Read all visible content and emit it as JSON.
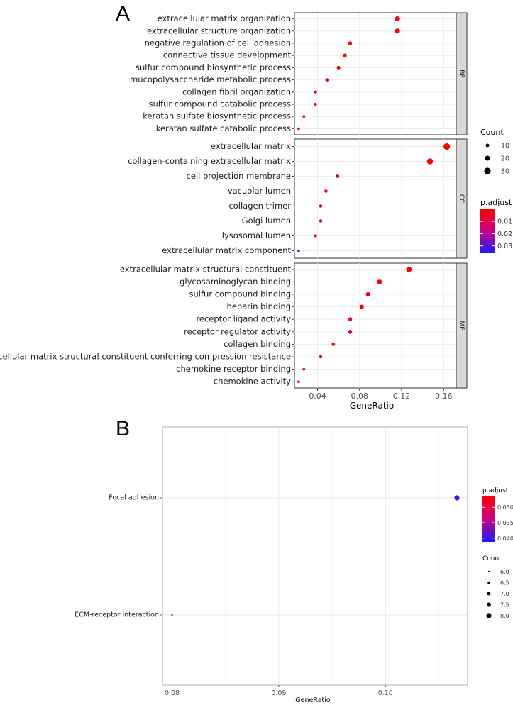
{
  "chart_data": [
    {
      "panel_label": "A",
      "type": "scatter",
      "subtype": "faceted dot plot",
      "xlabel": "GeneRatio",
      "xlim": [
        0.018,
        0.172
      ],
      "xticks": [
        0.04,
        0.08,
        0.12,
        0.16
      ],
      "xtick_labels": [
        "0.04",
        "0.08",
        "0.12",
        "0.16"
      ],
      "facets": [
        {
          "name": "BP",
          "terms": [
            {
              "term": "extracellular matrix organization",
              "gene_ratio": 0.116,
              "count": 21,
              "p_adjust": 0.0002
            },
            {
              "term": "extracellular structure organization",
              "gene_ratio": 0.116,
              "count": 21,
              "p_adjust": 0.0002
            },
            {
              "term": "negative regulation of cell adhesion",
              "gene_ratio": 0.071,
              "count": 13,
              "p_adjust": 0.0005
            },
            {
              "term": "connective tissue development",
              "gene_ratio": 0.066,
              "count": 12,
              "p_adjust": 0.0008
            },
            {
              "term": "sulfur compound biosynthetic process",
              "gene_ratio": 0.06,
              "count": 11,
              "p_adjust": 0.0008
            },
            {
              "term": "mucopolysaccharide metabolic process",
              "gene_ratio": 0.049,
              "count": 9,
              "p_adjust": 0.001
            },
            {
              "term": "collagen fibril organization",
              "gene_ratio": 0.038,
              "count": 7,
              "p_adjust": 0.001
            },
            {
              "term": "sulfur compound catabolic process",
              "gene_ratio": 0.038,
              "count": 7,
              "p_adjust": 0.001
            },
            {
              "term": "keratan sulfate biosynthetic process",
              "gene_ratio": 0.027,
              "count": 5,
              "p_adjust": 0.002
            },
            {
              "term": "keratan sulfate catabolic process",
              "gene_ratio": 0.022,
              "count": 4,
              "p_adjust": 0.002
            }
          ]
        },
        {
          "name": "CC",
          "terms": [
            {
              "term": "extracellular matrix",
              "gene_ratio": 0.163,
              "count": 30,
              "p_adjust": 0.0001
            },
            {
              "term": "collagen-containing extracellular matrix",
              "gene_ratio": 0.147,
              "count": 27,
              "p_adjust": 0.0001
            },
            {
              "term": "cell projection membrane",
              "gene_ratio": 0.059,
              "count": 11,
              "p_adjust": 0.019
            },
            {
              "term": "vacuolar lumen",
              "gene_ratio": 0.048,
              "count": 9,
              "p_adjust": 0.003
            },
            {
              "term": "collagen trimer",
              "gene_ratio": 0.043,
              "count": 8,
              "p_adjust": 0.002
            },
            {
              "term": "Golgi lumen",
              "gene_ratio": 0.043,
              "count": 8,
              "p_adjust": 0.002
            },
            {
              "term": "lysosomal lumen",
              "gene_ratio": 0.038,
              "count": 7,
              "p_adjust": 0.004
            },
            {
              "term": "extracellular matrix component",
              "gene_ratio": 0.022,
              "count": 4,
              "p_adjust": 0.034
            }
          ]
        },
        {
          "name": "MF",
          "terms": [
            {
              "term": "extracellular matrix structural constituent",
              "gene_ratio": 0.127,
              "count": 23,
              "p_adjust": 0.0001
            },
            {
              "term": "glycosaminoglycan binding",
              "gene_ratio": 0.099,
              "count": 18,
              "p_adjust": 0.0002
            },
            {
              "term": "sulfur compound binding",
              "gene_ratio": 0.088,
              "count": 16,
              "p_adjust": 0.0005
            },
            {
              "term": "heparin binding",
              "gene_ratio": 0.082,
              "count": 15,
              "p_adjust": 0.0008
            },
            {
              "term": "receptor ligand activity",
              "gene_ratio": 0.071,
              "count": 13,
              "p_adjust": 0.008
            },
            {
              "term": "receptor regulator activity",
              "gene_ratio": 0.071,
              "count": 13,
              "p_adjust": 0.009
            },
            {
              "term": "collagen binding",
              "gene_ratio": 0.055,
              "count": 10,
              "p_adjust": 0.001
            },
            {
              "term": "extracellular matrix structural constituent conferring compression resistance",
              "gene_ratio": 0.043,
              "count": 8,
              "p_adjust": 0.001
            },
            {
              "term": "chemokine receptor binding",
              "gene_ratio": 0.027,
              "count": 5,
              "p_adjust": 0.006
            },
            {
              "term": "chemokine activity",
              "gene_ratio": 0.022,
              "count": 4,
              "p_adjust": 0.003
            }
          ]
        }
      ],
      "legend_count": {
        "title": "Count",
        "values": [
          10,
          20,
          30
        ],
        "labels": [
          "10",
          "20",
          "30"
        ]
      },
      "legend_color": {
        "title": "p.adjust",
        "range": [
          0.0001,
          0.036
        ],
        "ticks": [
          0.01,
          0.02,
          0.03
        ],
        "tick_labels": [
          "0.01",
          "0.02",
          "0.03"
        ],
        "low_color": "#ff0000",
        "high_color": "#1a1aff"
      }
    },
    {
      "panel_label": "B",
      "type": "scatter",
      "subtype": "dot plot",
      "xlabel": "GeneRatio",
      "xlim": [
        0.0791,
        0.1077
      ],
      "xticks": [
        0.08,
        0.09,
        0.1
      ],
      "xtick_labels": [
        "0.08",
        "0.09",
        "0.10"
      ],
      "terms": [
        {
          "term": "Focal adhesion",
          "gene_ratio": 0.1067,
          "count": 8,
          "p_adjust": 0.0405
        },
        {
          "term": "ECM-receptor interaction",
          "gene_ratio": 0.08,
          "count": 6,
          "p_adjust": 0.0265
        }
      ],
      "legend_color": {
        "title": "p.adjust",
        "range": [
          0.0265,
          0.0412
        ],
        "ticks": [
          0.03,
          0.035,
          0.04
        ],
        "tick_labels": [
          "0.030",
          "0.035",
          "0.040"
        ],
        "low_color": "#ff0000",
        "high_color": "#1a1aff"
      },
      "legend_count": {
        "title": "Count",
        "values": [
          6.0,
          6.5,
          7.0,
          7.5,
          8.0
        ],
        "labels": [
          "6.0",
          "6.5",
          "7.0",
          "7.5",
          "8.0"
        ]
      }
    }
  ]
}
